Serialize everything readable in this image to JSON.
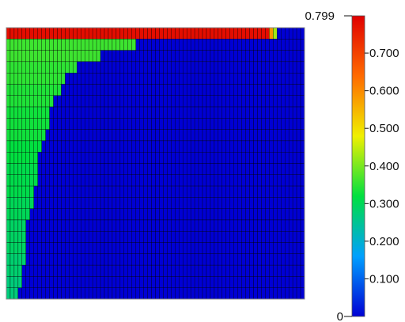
{
  "chart_data": {
    "type": "heatmap",
    "title": "",
    "xlabel": "",
    "ylabel": "",
    "grid": true,
    "rows": 24,
    "columns": 76,
    "row_bands_from_top": [
      {
        "row": 1,
        "value": 0.78,
        "extent_fraction": 0.91
      },
      {
        "row": 2,
        "value": 0.36,
        "extent_fraction": 0.44
      },
      {
        "row": 3,
        "value": 0.36,
        "extent_fraction": 0.31
      },
      {
        "row": 4,
        "value": 0.35,
        "extent_fraction": 0.24
      },
      {
        "row": 5,
        "value": 0.35,
        "extent_fraction": 0.2
      },
      {
        "row": 6,
        "value": 0.34,
        "extent_fraction": 0.18
      },
      {
        "row": 7,
        "value": 0.34,
        "extent_fraction": 0.16
      },
      {
        "row": 8,
        "value": 0.33,
        "extent_fraction": 0.15
      },
      {
        "row": 9,
        "value": 0.33,
        "extent_fraction": 0.14
      },
      {
        "row": 10,
        "value": 0.33,
        "extent_fraction": 0.13
      },
      {
        "row": 11,
        "value": 0.32,
        "extent_fraction": 0.12
      },
      {
        "row": 12,
        "value": 0.32,
        "extent_fraction": 0.11
      },
      {
        "row": 13,
        "value": 0.31,
        "extent_fraction": 0.11
      },
      {
        "row": 14,
        "value": 0.31,
        "extent_fraction": 0.1
      },
      {
        "row": 15,
        "value": 0.31,
        "extent_fraction": 0.09
      },
      {
        "row": 16,
        "value": 0.3,
        "extent_fraction": 0.09
      },
      {
        "row": 17,
        "value": 0.3,
        "extent_fraction": 0.08
      },
      {
        "row": 18,
        "value": 0.29,
        "extent_fraction": 0.07
      },
      {
        "row": 19,
        "value": 0.29,
        "extent_fraction": 0.07
      },
      {
        "row": 20,
        "value": 0.29,
        "extent_fraction": 0.06
      },
      {
        "row": 21,
        "value": 0.28,
        "extent_fraction": 0.06
      },
      {
        "row": 22,
        "value": 0.28,
        "extent_fraction": 0.05
      },
      {
        "row": 23,
        "value": 0.27,
        "extent_fraction": 0.05
      },
      {
        "row": 24,
        "value": 0.27,
        "extent_fraction": 0.04
      }
    ],
    "background_value": 0.0,
    "colorbar": {
      "min": 0,
      "max": 0.799,
      "min_label": "0",
      "max_label": "0.799",
      "ticks": [
        {
          "value": 0.1,
          "label": "0.100"
        },
        {
          "value": 0.2,
          "label": "0.200"
        },
        {
          "value": 0.3,
          "label": "0.300"
        },
        {
          "value": 0.4,
          "label": "0.400"
        },
        {
          "value": 0.5,
          "label": "0.500"
        },
        {
          "value": 0.6,
          "label": "0.600"
        },
        {
          "value": 0.7,
          "label": "0.700"
        }
      ],
      "colormap": [
        "#0000d4",
        "#00a0ff",
        "#00e040",
        "#f0f000",
        "#ff6a00",
        "#e00000"
      ]
    },
    "colors": {
      "cell_border": "#000000",
      "plot_border": "#888888"
    }
  }
}
